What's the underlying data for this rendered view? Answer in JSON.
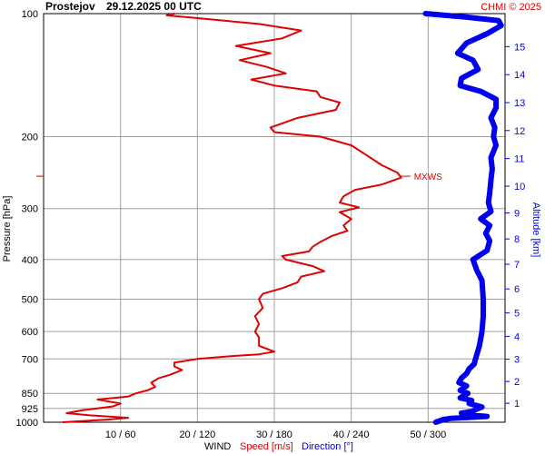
{
  "header": {
    "station": "Prostejov",
    "datetime": "29.12.2025 00 UTC",
    "copyright": "CHMI © 2025"
  },
  "colors": {
    "speed": "#e00000",
    "direction": "#0000ee",
    "grid": "#a0a0a0",
    "text": "#000000"
  },
  "chart_data": {
    "type": "line",
    "title": "Prostejov   29.12.2025 00 UTC",
    "ylabel": "Pressure [hPa]",
    "y2label": "Altitude [km]",
    "xlabel_parts": [
      "WIND",
      "Speed [m/s]",
      "Direction [°]"
    ],
    "y_scale": "log",
    "ylim": [
      1000,
      100
    ],
    "pressure_ticks": [
      100,
      200,
      300,
      400,
      500,
      600,
      700,
      850,
      925,
      1000
    ],
    "altitude_ticks": [
      1,
      2,
      3,
      4,
      5,
      6,
      7,
      8,
      9,
      10,
      11,
      12,
      13,
      14,
      15
    ],
    "x_ticks": [
      "10 / 60",
      "20 / 120",
      "30 / 180",
      "40 / 240",
      "50 / 300"
    ],
    "speed_xlim": [
      0,
      60
    ],
    "direction_xlim": [
      0,
      360
    ],
    "annotation": {
      "text": "MXWS",
      "pressure": 250
    },
    "series": [
      {
        "name": "Speed [m/s]",
        "unit": "m/s",
        "points": [
          [
            1000,
            2.5
          ],
          [
            985,
            8.5
          ],
          [
            975,
            11
          ],
          [
            962,
            6
          ],
          [
            950,
            3
          ],
          [
            935,
            5
          ],
          [
            925,
            7
          ],
          [
            915,
            9
          ],
          [
            900,
            10
          ],
          [
            880,
            7
          ],
          [
            865,
            11
          ],
          [
            850,
            12
          ],
          [
            835,
            13.5
          ],
          [
            820,
            14.5
          ],
          [
            800,
            14
          ],
          [
            780,
            15
          ],
          [
            765,
            16.5
          ],
          [
            745,
            18
          ],
          [
            730,
            17
          ],
          [
            715,
            17
          ],
          [
            700,
            20
          ],
          [
            690,
            24
          ],
          [
            682,
            28
          ],
          [
            672,
            30
          ],
          [
            650,
            28
          ],
          [
            620,
            28
          ],
          [
            600,
            27.5
          ],
          [
            575,
            28
          ],
          [
            550,
            27.5
          ],
          [
            525,
            28.5
          ],
          [
            500,
            28
          ],
          [
            485,
            28.5
          ],
          [
            470,
            31
          ],
          [
            455,
            33
          ],
          [
            440,
            33.5
          ],
          [
            427,
            36.5
          ],
          [
            415,
            35
          ],
          [
            400,
            31.5
          ],
          [
            392,
            31
          ],
          [
            382,
            34.5
          ],
          [
            372,
            35
          ],
          [
            362,
            36
          ],
          [
            350,
            37.5
          ],
          [
            340,
            39.5
          ],
          [
            330,
            39
          ],
          [
            318,
            40
          ],
          [
            306,
            38.5
          ],
          [
            298,
            41
          ],
          [
            290,
            38.5
          ],
          [
            280,
            39
          ],
          [
            270,
            40.5
          ],
          [
            262,
            44
          ],
          [
            252,
            46.5
          ],
          [
            245,
            46
          ],
          [
            235,
            44
          ],
          [
            222,
            42
          ],
          [
            210,
            40
          ],
          [
            200,
            36
          ],
          [
            195,
            30
          ],
          [
            190,
            29.5
          ],
          [
            180,
            33
          ],
          [
            172,
            38
          ],
          [
            165,
            38.5
          ],
          [
            160,
            36
          ],
          [
            155,
            35.5
          ],
          [
            150,
            30
          ],
          [
            145,
            27
          ],
          [
            140,
            31.5
          ],
          [
            135,
            29
          ],
          [
            130,
            25.5
          ],
          [
            125,
            29.5
          ],
          [
            120,
            25
          ],
          [
            115,
            31
          ],
          [
            110,
            33.5
          ],
          [
            106,
            28
          ],
          [
            103,
            21
          ],
          [
            101,
            16
          ],
          [
            100,
            17
          ]
        ]
      },
      {
        "name": "Direction [°]",
        "unit": "deg",
        "points": [
          [
            1000,
            306
          ],
          [
            985,
            312
          ],
          [
            978,
            318
          ],
          [
            968,
            346
          ],
          [
            960,
            331
          ],
          [
            950,
            326
          ],
          [
            940,
            335
          ],
          [
            928,
            338
          ],
          [
            918,
            342
          ],
          [
            900,
            332
          ],
          [
            885,
            334
          ],
          [
            872,
            325
          ],
          [
            850,
            331
          ],
          [
            835,
            325
          ],
          [
            815,
            330
          ],
          [
            800,
            324
          ],
          [
            780,
            326
          ],
          [
            760,
            330
          ],
          [
            740,
            332
          ],
          [
            720,
            336
          ],
          [
            700,
            337
          ],
          [
            650,
            340
          ],
          [
            600,
            342
          ],
          [
            550,
            343
          ],
          [
            500,
            343
          ],
          [
            450,
            342
          ],
          [
            425,
            338
          ],
          [
            400,
            335
          ],
          [
            380,
            346
          ],
          [
            360,
            348
          ],
          [
            345,
            345
          ],
          [
            330,
            348
          ],
          [
            318,
            341
          ],
          [
            305,
            349
          ],
          [
            290,
            347
          ],
          [
            275,
            348
          ],
          [
            255,
            349
          ],
          [
            240,
            350
          ],
          [
            225,
            349
          ],
          [
            210,
            353
          ],
          [
            200,
            351
          ],
          [
            190,
            352
          ],
          [
            180,
            349
          ],
          [
            170,
            353
          ],
          [
            162,
            353
          ],
          [
            155,
            341
          ],
          [
            150,
            325
          ],
          [
            144,
            326
          ],
          [
            137,
            339
          ],
          [
            130,
            335
          ],
          [
            125,
            323
          ],
          [
            118,
            330
          ],
          [
            112,
            346
          ],
          [
            107,
            357
          ],
          [
            104,
            355
          ],
          [
            102,
            330
          ],
          [
            100,
            298
          ]
        ]
      }
    ]
  }
}
